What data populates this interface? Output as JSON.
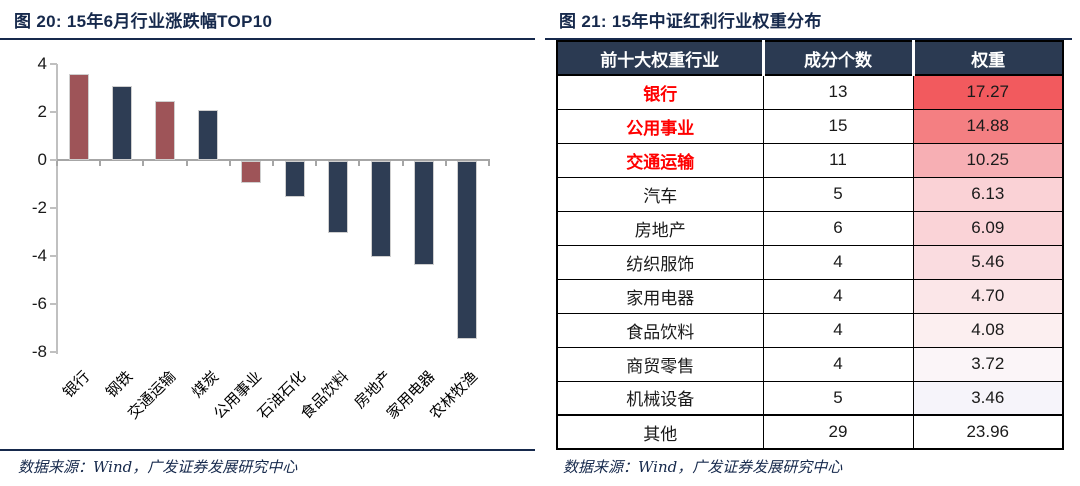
{
  "colors": {
    "accent_navy": "#16294C",
    "bar_red": "#9E5458",
    "bar_navy": "#2E3D54",
    "axis_gray": "#C0C0C0",
    "zero_line_gray": "#A6A6A6",
    "table_header_bg": "#2B3A52",
    "table_header_text": "#FFFFFF",
    "highlight_red": "#FF0000"
  },
  "left_panel": {
    "title": "图 20: 15年6月行业涨跌幅TOP10",
    "source": "数据来源：Wind，广发证券发展研究中心"
  },
  "right_panel": {
    "title": "图 21: 15年中证红利行业权重分布",
    "source": "数据来源：Wind，广发证券发展研究中心"
  },
  "chart_data": [
    {
      "type": "bar",
      "title": "图 20: 15年6月行业涨跌幅TOP10",
      "xlabel": "",
      "ylabel": "",
      "ylim": [
        -8,
        4
      ],
      "yticks": [
        4,
        2,
        0,
        -2,
        -4,
        -6,
        -8
      ],
      "grid": false,
      "legend": "none",
      "categories": [
        "银行",
        "钢铁",
        "交通运输",
        "煤炭",
        "公用事业",
        "石油石化",
        "食品饮料",
        "房地产",
        "家用电器",
        "农林牧渔"
      ],
      "values": [
        3.6,
        3.1,
        2.45,
        2.1,
        -0.9,
        -1.5,
        -3.0,
        -4.0,
        -4.35,
        -7.4
      ],
      "bar_colors": [
        "#9E5458",
        "#2E3D54",
        "#9E5458",
        "#2E3D54",
        "#9E5458",
        "#2E3D54",
        "#2E3D54",
        "#2E3D54",
        "#2E3D54",
        "#2E3D54"
      ]
    },
    {
      "type": "table",
      "title": "图 21: 15年中证红利行业权重分布",
      "columns": [
        "前十大权重行业",
        "成分个数",
        "权重"
      ],
      "rows": [
        {
          "industry": "银行",
          "count": "13",
          "weight": "17.27",
          "industry_red": true,
          "weight_bg": "#F25A5E"
        },
        {
          "industry": "公用事业",
          "count": "15",
          "weight": "14.88",
          "industry_red": true,
          "weight_bg": "#F47F82"
        },
        {
          "industry": "交通运输",
          "count": "11",
          "weight": "10.25",
          "industry_red": true,
          "weight_bg": "#F7AFB4"
        },
        {
          "industry": "汽车",
          "count": "5",
          "weight": "6.13",
          "industry_red": false,
          "weight_bg": "#FAD2D6"
        },
        {
          "industry": "房地产",
          "count": "6",
          "weight": "6.09",
          "industry_red": false,
          "weight_bg": "#FAD3D7"
        },
        {
          "industry": "纺织服饰",
          "count": "4",
          "weight": "5.46",
          "industry_red": false,
          "weight_bg": "#FADCE0"
        },
        {
          "industry": "家用电器",
          "count": "4",
          "weight": "4.70",
          "industry_red": false,
          "weight_bg": "#FBE6E8"
        },
        {
          "industry": "食品饮料",
          "count": "4",
          "weight": "4.08",
          "industry_red": false,
          "weight_bg": "#FCEFF0"
        },
        {
          "industry": "商贸零售",
          "count": "4",
          "weight": "3.72",
          "industry_red": false,
          "weight_bg": "#FBF5F8"
        },
        {
          "industry": "机械设备",
          "count": "5",
          "weight": "3.46",
          "industry_red": false,
          "weight_bg": "#F6F4FA"
        },
        {
          "industry": "其他",
          "count": "29",
          "weight": "23.96",
          "industry_red": false,
          "weight_bg": "#FFFFFF"
        }
      ]
    }
  ]
}
